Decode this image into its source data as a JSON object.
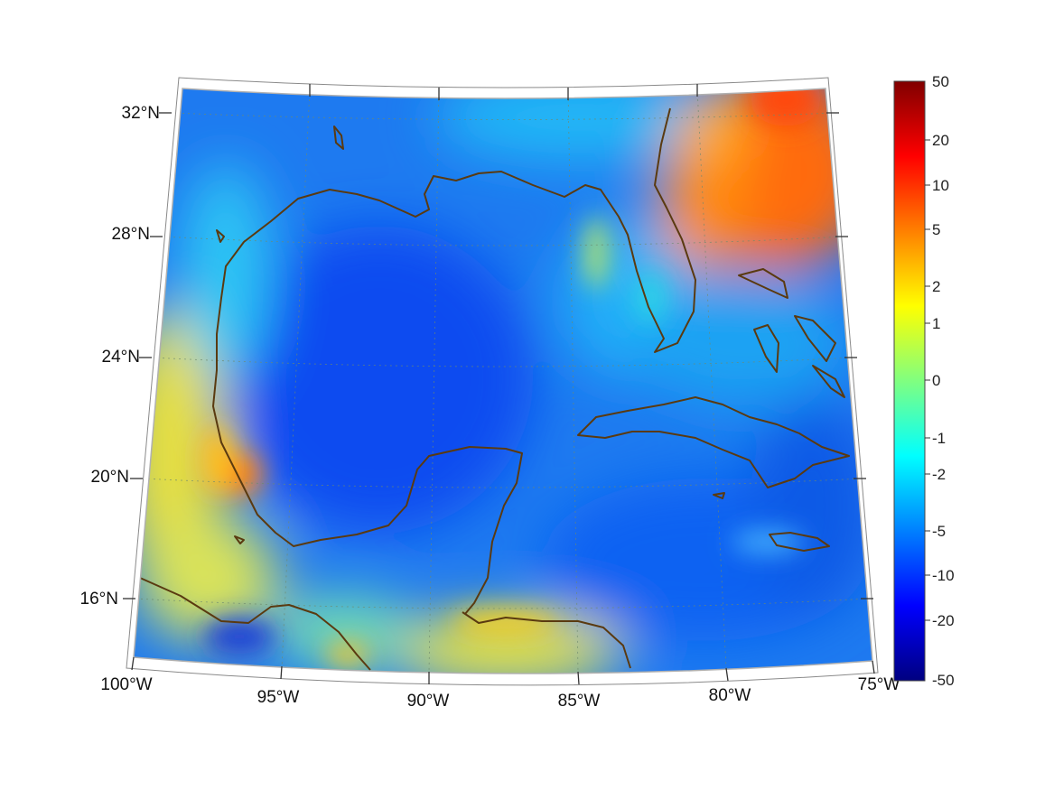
{
  "map": {
    "lon_labels": [
      "100°W",
      "95°W",
      "90°W",
      "85°W",
      "80°W",
      "75°W"
    ],
    "lat_labels": [
      "32°N",
      "28°N",
      "24°N",
      "20°N",
      "16°N"
    ],
    "coastline_color": "#5a3a10",
    "gridline_color": "#6e8a6e"
  },
  "colorbar": {
    "labels": [
      "50",
      "20",
      "10",
      "5",
      "2",
      "1",
      "0",
      "-1",
      "-2",
      "-5",
      "-10",
      "-20",
      "-50"
    ],
    "colors": [
      "#800000",
      "#ff0000",
      "#ff8000",
      "#ffff00",
      "#80ff80",
      "#00ffff",
      "#0080ff",
      "#0000ff",
      "#000080"
    ],
    "colormap": "jet"
  }
}
